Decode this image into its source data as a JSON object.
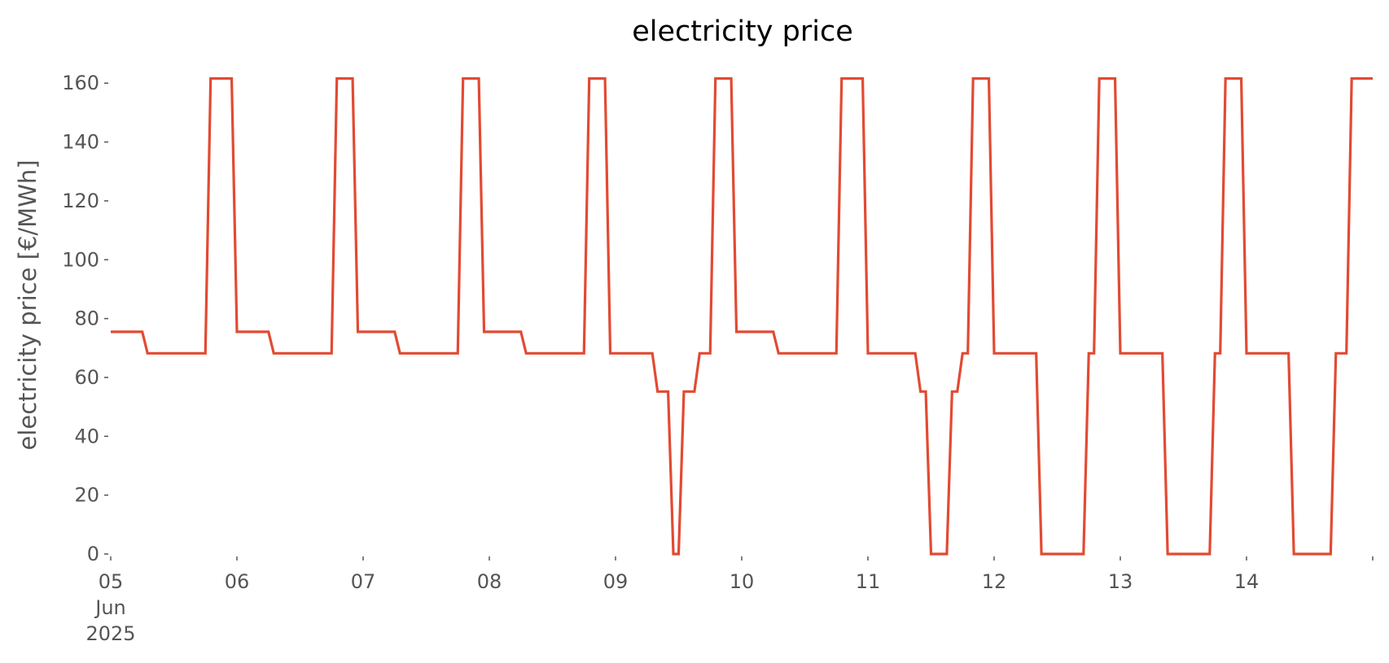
{
  "chart_data": {
    "type": "line",
    "title": "electricity price",
    "ylabel": "electricity price [€/MWh]",
    "xlabel": "",
    "ylim": [
      0,
      162
    ],
    "grid": false,
    "y_ticks": [
      0,
      20,
      40,
      60,
      80,
      100,
      120,
      140,
      160
    ],
    "y_tick_labels": [
      "0",
      "20",
      "40",
      "60",
      "80",
      "100",
      "120",
      "140",
      "160"
    ],
    "x_range": [
      "2025-06-05 00:00",
      "2025-06-15 00:00"
    ],
    "x_ticks": [
      "2025-06-05",
      "2025-06-06",
      "2025-06-07",
      "2025-06-08",
      "2025-06-09",
      "2025-06-10",
      "2025-06-11",
      "2025-06-12",
      "2025-06-13",
      "2025-06-14",
      "2025-06-15"
    ],
    "x_tick_labels": [
      [
        "05",
        "Jun",
        "2025"
      ],
      [
        "06"
      ],
      [
        "07"
      ],
      [
        "08"
      ],
      [
        "09"
      ],
      [
        "10"
      ],
      [
        "11"
      ],
      [
        "12"
      ],
      [
        "13"
      ],
      [
        "14"
      ],
      []
    ],
    "series": [
      {
        "color": "#e24a33",
        "points": [
          [
            "2025-06-05 00:00",
            75.5
          ],
          [
            "2025-06-05 06:00",
            75.5
          ],
          [
            "2025-06-05 07:00",
            68.2
          ],
          [
            "2025-06-05 18:00",
            68.2
          ],
          [
            "2025-06-05 19:00",
            161.6
          ],
          [
            "2025-06-05 23:00",
            161.6
          ],
          [
            "2025-06-06 00:00",
            75.5
          ],
          [
            "2025-06-06 06:00",
            75.5
          ],
          [
            "2025-06-06 07:00",
            68.2
          ],
          [
            "2025-06-06 18:00",
            68.2
          ],
          [
            "2025-06-06 19:00",
            161.6
          ],
          [
            "2025-06-06 22:00",
            161.6
          ],
          [
            "2025-06-06 23:00",
            75.5
          ],
          [
            "2025-06-07 06:00",
            75.5
          ],
          [
            "2025-06-07 07:00",
            68.2
          ],
          [
            "2025-06-07 18:00",
            68.2
          ],
          [
            "2025-06-07 19:00",
            161.6
          ],
          [
            "2025-06-07 22:00",
            161.6
          ],
          [
            "2025-06-07 23:00",
            75.5
          ],
          [
            "2025-06-08 06:00",
            75.5
          ],
          [
            "2025-06-08 07:00",
            68.2
          ],
          [
            "2025-06-08 18:00",
            68.2
          ],
          [
            "2025-06-08 19:00",
            161.6
          ],
          [
            "2025-06-08 22:00",
            161.6
          ],
          [
            "2025-06-08 23:00",
            68.2
          ],
          [
            "2025-06-09 07:00",
            68.2
          ],
          [
            "2025-06-09 08:00",
            55.2
          ],
          [
            "2025-06-09 10:00",
            55.2
          ],
          [
            "2025-06-09 11:00",
            0
          ],
          [
            "2025-06-09 12:00",
            0
          ],
          [
            "2025-06-09 13:00",
            55.2
          ],
          [
            "2025-06-09 15:00",
            55.2
          ],
          [
            "2025-06-09 16:00",
            68.2
          ],
          [
            "2025-06-09 18:00",
            68.2
          ],
          [
            "2025-06-09 19:00",
            161.6
          ],
          [
            "2025-06-09 22:00",
            161.6
          ],
          [
            "2025-06-09 23:00",
            75.5
          ],
          [
            "2025-06-10 06:00",
            75.5
          ],
          [
            "2025-06-10 07:00",
            68.2
          ],
          [
            "2025-06-10 18:00",
            68.2
          ],
          [
            "2025-06-10 19:00",
            161.6
          ],
          [
            "2025-06-10 23:00",
            161.6
          ],
          [
            "2025-06-11 00:00",
            68.2
          ],
          [
            "2025-06-11 09:00",
            68.2
          ],
          [
            "2025-06-11 10:00",
            55.2
          ],
          [
            "2025-06-11 11:00",
            55.2
          ],
          [
            "2025-06-11 12:00",
            0
          ],
          [
            "2025-06-11 15:00",
            0
          ],
          [
            "2025-06-11 16:00",
            55.2
          ],
          [
            "2025-06-11 17:00",
            55.2
          ],
          [
            "2025-06-11 18:00",
            68.2
          ],
          [
            "2025-06-11 19:00",
            68.2
          ],
          [
            "2025-06-11 20:00",
            161.6
          ],
          [
            "2025-06-11 23:00",
            161.6
          ],
          [
            "2025-06-12 00:00",
            68.2
          ],
          [
            "2025-06-12 08:00",
            68.2
          ],
          [
            "2025-06-12 09:00",
            0
          ],
          [
            "2025-06-12 17:00",
            0
          ],
          [
            "2025-06-12 18:00",
            68.2
          ],
          [
            "2025-06-12 19:00",
            68.2
          ],
          [
            "2025-06-12 20:00",
            161.6
          ],
          [
            "2025-06-12 23:00",
            161.6
          ],
          [
            "2025-06-13 00:00",
            68.2
          ],
          [
            "2025-06-13 08:00",
            68.2
          ],
          [
            "2025-06-13 09:00",
            0
          ],
          [
            "2025-06-13 17:00",
            0
          ],
          [
            "2025-06-13 18:00",
            68.2
          ],
          [
            "2025-06-13 19:00",
            68.2
          ],
          [
            "2025-06-13 20:00",
            161.6
          ],
          [
            "2025-06-13 23:00",
            161.6
          ],
          [
            "2025-06-14 00:00",
            68.2
          ],
          [
            "2025-06-14 08:00",
            68.2
          ],
          [
            "2025-06-14 09:00",
            0
          ],
          [
            "2025-06-14 16:00",
            0
          ],
          [
            "2025-06-14 17:00",
            68.2
          ],
          [
            "2025-06-14 19:00",
            68.2
          ],
          [
            "2025-06-14 20:00",
            161.6
          ],
          [
            "2025-06-15 00:00",
            161.6
          ]
        ]
      }
    ]
  }
}
